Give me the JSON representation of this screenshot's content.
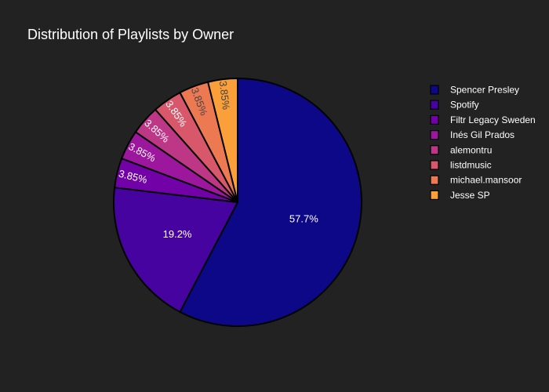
{
  "chart_data": {
    "type": "pie",
    "title": "Distribution of Playlists by Owner",
    "slices": [
      {
        "name": "Spencer Presley",
        "value": 57.7,
        "label": "57.7%",
        "color": "#0d0887",
        "label_color": "#ffffff"
      },
      {
        "name": "Spotify",
        "value": 19.2,
        "label": "19.2%",
        "color": "#46039f",
        "label_color": "#ffffff"
      },
      {
        "name": "Filtr Legacy Sweden",
        "value": 3.85,
        "label": "3.85%",
        "color": "#7201a8",
        "label_color": "#ffffff"
      },
      {
        "name": "Inés Gil Prados",
        "value": 3.85,
        "label": "3.85%",
        "color": "#9c179e",
        "label_color": "#ffffff"
      },
      {
        "name": "alemontru",
        "value": 3.85,
        "label": "3.85%",
        "color": "#bd3786",
        "label_color": "#ffffff"
      },
      {
        "name": "listdmusic",
        "value": 3.85,
        "label": "3.85%",
        "color": "#d8576b",
        "label_color": "#ffffff"
      },
      {
        "name": "michael.mansoor",
        "value": 3.85,
        "label": "3.85%",
        "color": "#ed7953",
        "label_color": "#444444"
      },
      {
        "name": "Jesse SP",
        "value": 3.85,
        "label": "3.85%",
        "color": "#fb9f3a",
        "label_color": "#444444"
      }
    ],
    "direction": "clockwise",
    "start": "top",
    "legend_placement": "top-right",
    "background_color": "#222222"
  }
}
